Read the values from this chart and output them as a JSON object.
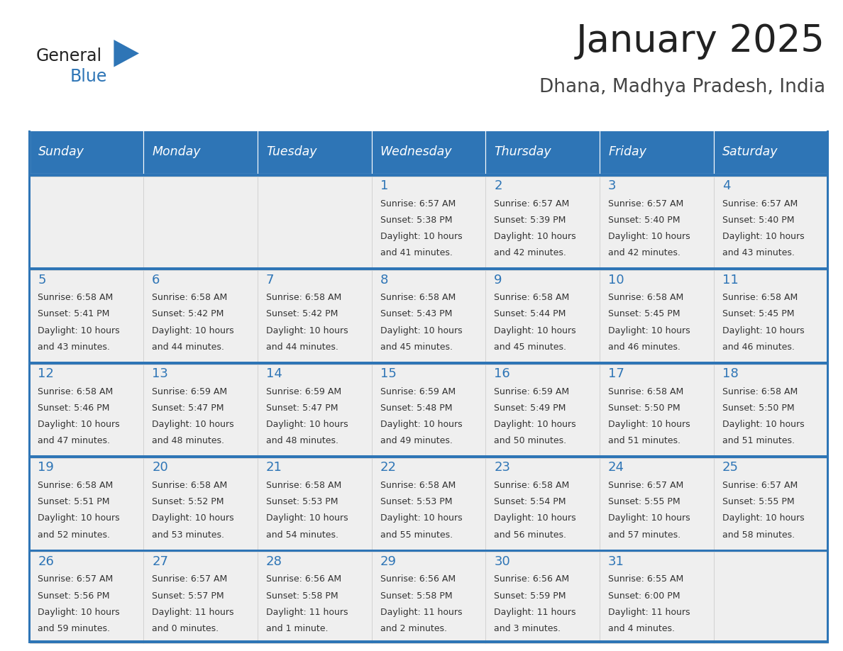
{
  "title": "January 2025",
  "subtitle": "Dhana, Madhya Pradesh, India",
  "header_bg_color": "#2E75B6",
  "header_text_color": "#FFFFFF",
  "cell_bg_color": "#EFEFEF",
  "day_number_color": "#2E75B6",
  "cell_text_color": "#333333",
  "title_color": "#222222",
  "subtitle_color": "#444444",
  "row_border_color": "#2E75B6",
  "cell_border_color": "#CCCCCC",
  "days_of_week": [
    "Sunday",
    "Monday",
    "Tuesday",
    "Wednesday",
    "Thursday",
    "Friday",
    "Saturday"
  ],
  "weeks": [
    [
      {
        "day": "",
        "sunrise": "",
        "sunset": "",
        "daylight": ""
      },
      {
        "day": "",
        "sunrise": "",
        "sunset": "",
        "daylight": ""
      },
      {
        "day": "",
        "sunrise": "",
        "sunset": "",
        "daylight": ""
      },
      {
        "day": "1",
        "sunrise": "6:57 AM",
        "sunset": "5:38 PM",
        "daylight_line1": "Daylight: 10 hours",
        "daylight_line2": "and 41 minutes."
      },
      {
        "day": "2",
        "sunrise": "6:57 AM",
        "sunset": "5:39 PM",
        "daylight_line1": "Daylight: 10 hours",
        "daylight_line2": "and 42 minutes."
      },
      {
        "day": "3",
        "sunrise": "6:57 AM",
        "sunset": "5:40 PM",
        "daylight_line1": "Daylight: 10 hours",
        "daylight_line2": "and 42 minutes."
      },
      {
        "day": "4",
        "sunrise": "6:57 AM",
        "sunset": "5:40 PM",
        "daylight_line1": "Daylight: 10 hours",
        "daylight_line2": "and 43 minutes."
      }
    ],
    [
      {
        "day": "5",
        "sunrise": "6:58 AM",
        "sunset": "5:41 PM",
        "daylight_line1": "Daylight: 10 hours",
        "daylight_line2": "and 43 minutes."
      },
      {
        "day": "6",
        "sunrise": "6:58 AM",
        "sunset": "5:42 PM",
        "daylight_line1": "Daylight: 10 hours",
        "daylight_line2": "and 44 minutes."
      },
      {
        "day": "7",
        "sunrise": "6:58 AM",
        "sunset": "5:42 PM",
        "daylight_line1": "Daylight: 10 hours",
        "daylight_line2": "and 44 minutes."
      },
      {
        "day": "8",
        "sunrise": "6:58 AM",
        "sunset": "5:43 PM",
        "daylight_line1": "Daylight: 10 hours",
        "daylight_line2": "and 45 minutes."
      },
      {
        "day": "9",
        "sunrise": "6:58 AM",
        "sunset": "5:44 PM",
        "daylight_line1": "Daylight: 10 hours",
        "daylight_line2": "and 45 minutes."
      },
      {
        "day": "10",
        "sunrise": "6:58 AM",
        "sunset": "5:45 PM",
        "daylight_line1": "Daylight: 10 hours",
        "daylight_line2": "and 46 minutes."
      },
      {
        "day": "11",
        "sunrise": "6:58 AM",
        "sunset": "5:45 PM",
        "daylight_line1": "Daylight: 10 hours",
        "daylight_line2": "and 46 minutes."
      }
    ],
    [
      {
        "day": "12",
        "sunrise": "6:58 AM",
        "sunset": "5:46 PM",
        "daylight_line1": "Daylight: 10 hours",
        "daylight_line2": "and 47 minutes."
      },
      {
        "day": "13",
        "sunrise": "6:59 AM",
        "sunset": "5:47 PM",
        "daylight_line1": "Daylight: 10 hours",
        "daylight_line2": "and 48 minutes."
      },
      {
        "day": "14",
        "sunrise": "6:59 AM",
        "sunset": "5:47 PM",
        "daylight_line1": "Daylight: 10 hours",
        "daylight_line2": "and 48 minutes."
      },
      {
        "day": "15",
        "sunrise": "6:59 AM",
        "sunset": "5:48 PM",
        "daylight_line1": "Daylight: 10 hours",
        "daylight_line2": "and 49 minutes."
      },
      {
        "day": "16",
        "sunrise": "6:59 AM",
        "sunset": "5:49 PM",
        "daylight_line1": "Daylight: 10 hours",
        "daylight_line2": "and 50 minutes."
      },
      {
        "day": "17",
        "sunrise": "6:58 AM",
        "sunset": "5:50 PM",
        "daylight_line1": "Daylight: 10 hours",
        "daylight_line2": "and 51 minutes."
      },
      {
        "day": "18",
        "sunrise": "6:58 AM",
        "sunset": "5:50 PM",
        "daylight_line1": "Daylight: 10 hours",
        "daylight_line2": "and 51 minutes."
      }
    ],
    [
      {
        "day": "19",
        "sunrise": "6:58 AM",
        "sunset": "5:51 PM",
        "daylight_line1": "Daylight: 10 hours",
        "daylight_line2": "and 52 minutes."
      },
      {
        "day": "20",
        "sunrise": "6:58 AM",
        "sunset": "5:52 PM",
        "daylight_line1": "Daylight: 10 hours",
        "daylight_line2": "and 53 minutes."
      },
      {
        "day": "21",
        "sunrise": "6:58 AM",
        "sunset": "5:53 PM",
        "daylight_line1": "Daylight: 10 hours",
        "daylight_line2": "and 54 minutes."
      },
      {
        "day": "22",
        "sunrise": "6:58 AM",
        "sunset": "5:53 PM",
        "daylight_line1": "Daylight: 10 hours",
        "daylight_line2": "and 55 minutes."
      },
      {
        "day": "23",
        "sunrise": "6:58 AM",
        "sunset": "5:54 PM",
        "daylight_line1": "Daylight: 10 hours",
        "daylight_line2": "and 56 minutes."
      },
      {
        "day": "24",
        "sunrise": "6:57 AM",
        "sunset": "5:55 PM",
        "daylight_line1": "Daylight: 10 hours",
        "daylight_line2": "and 57 minutes."
      },
      {
        "day": "25",
        "sunrise": "6:57 AM",
        "sunset": "5:55 PM",
        "daylight_line1": "Daylight: 10 hours",
        "daylight_line2": "and 58 minutes."
      }
    ],
    [
      {
        "day": "26",
        "sunrise": "6:57 AM",
        "sunset": "5:56 PM",
        "daylight_line1": "Daylight: 10 hours",
        "daylight_line2": "and 59 minutes."
      },
      {
        "day": "27",
        "sunrise": "6:57 AM",
        "sunset": "5:57 PM",
        "daylight_line1": "Daylight: 11 hours",
        "daylight_line2": "and 0 minutes."
      },
      {
        "day": "28",
        "sunrise": "6:56 AM",
        "sunset": "5:58 PM",
        "daylight_line1": "Daylight: 11 hours",
        "daylight_line2": "and 1 minute."
      },
      {
        "day": "29",
        "sunrise": "6:56 AM",
        "sunset": "5:58 PM",
        "daylight_line1": "Daylight: 11 hours",
        "daylight_line2": "and 2 minutes."
      },
      {
        "day": "30",
        "sunrise": "6:56 AM",
        "sunset": "5:59 PM",
        "daylight_line1": "Daylight: 11 hours",
        "daylight_line2": "and 3 minutes."
      },
      {
        "day": "31",
        "sunrise": "6:55 AM",
        "sunset": "6:00 PM",
        "daylight_line1": "Daylight: 11 hours",
        "daylight_line2": "and 4 minutes."
      },
      {
        "day": "",
        "sunrise": "",
        "sunset": "",
        "daylight_line1": "",
        "daylight_line2": ""
      }
    ]
  ],
  "logo_general_color": "#222222",
  "logo_blue_color": "#2E75B6",
  "logo_triangle_color": "#2E75B6",
  "fig_width": 11.88,
  "fig_height": 9.18
}
